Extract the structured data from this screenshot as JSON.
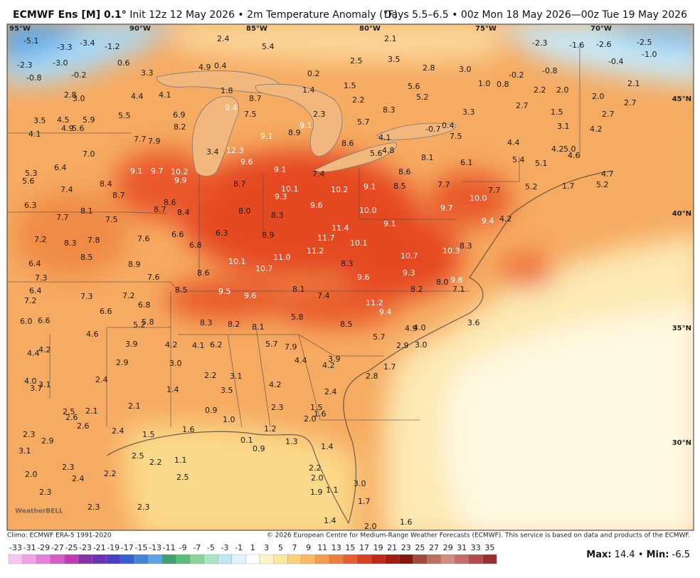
{
  "header": {
    "title_bold": "ECMWF Ens [M] 0.1°",
    "title_rest": "Init 12z 12 May 2026 • 2m Temperature Anomaly (°F)",
    "valid": "Days 5.5–6.5 • 00z Mon 18 May 2026—00z Tue 19 May 2026"
  },
  "map": {
    "lon_labels": [
      "95°W",
      "90°W",
      "85°W",
      "80°W",
      "75°W",
      "70°W"
    ],
    "lat_labels": [
      "45°N",
      "40°N",
      "35°N",
      "30°N"
    ],
    "logo": "WeatherBELL",
    "values": [
      "-5.1",
      "-3.3",
      "-3.4",
      "-1.2",
      "-2.3",
      "-3.0",
      "0.6",
      "-0.8",
      "-0.2",
      "2.4",
      "5.4",
      "2.1",
      "3.5",
      "2.5",
      "2.8",
      "3.0",
      "-2.3",
      "-1.6",
      "-2.6",
      "-2.5",
      "-1.0",
      "-0.4",
      "-0.8",
      "-0.2",
      "3.3",
      "4.9",
      "0.4",
      "0.2",
      "2.8",
      "3.0",
      "4.4",
      "4.1",
      "1.8",
      "1.4",
      "1.5",
      "2.2",
      "5.6",
      "5.2",
      "1.0",
      "0.8",
      "2.2",
      "2.0",
      "2.1",
      "2.0",
      "2.7",
      "2.7",
      "1.5",
      "5.5",
      "6.9",
      "8.2",
      "9.4",
      "8.7",
      "7.5",
      "2.3",
      "8.3",
      "5.7",
      "3.3",
      "3.1",
      "2.7",
      "4.2",
      "3.5",
      "4.5",
      "5.9",
      "4.1",
      "4.9",
      "5.6",
      "9.1",
      "9.1",
      "8.9",
      "-0.7",
      "0.4",
      "7.5",
      "4.1",
      "7.7",
      "7.9",
      "8.6",
      "4.4",
      "4.2",
      "5.0",
      "4.6",
      "3.4",
      "12.3",
      "9.6",
      "7.0",
      "5.6",
      "4.8",
      "8.1",
      "6.1",
      "5.4",
      "5.1",
      "6.4",
      "9.1",
      "9.7",
      "10.2",
      "9.9",
      "9.1",
      "7.4",
      "8.6",
      "4.7",
      "5.3",
      "5.6",
      "8.4",
      "7.4",
      "8.7",
      "10.1",
      "10.2",
      "9.1",
      "8.5",
      "7.7",
      "5.2",
      "1.7",
      "5.2",
      "7.7",
      "8.7",
      "10.0",
      "9.3",
      "6.3",
      "8.1",
      "8.6",
      "8.7",
      "8.4",
      "8.0",
      "9.6",
      "10.0",
      "9.7",
      "8.3",
      "7.7",
      "7.5",
      "9.1",
      "9.4",
      "4.2",
      "6.3",
      "6.6",
      "7.6",
      "7.2",
      "8.3",
      "7.8",
      "8.9",
      "11.4",
      "11.7",
      "10.1",
      "6.8",
      "10.3",
      "8.3",
      "11.2",
      "8.5",
      "11.0",
      "10.7",
      "10.1",
      "6.4",
      "8.9",
      "8.3",
      "10.7",
      "9.3",
      "8.6",
      "7.3",
      "7.6",
      "9.6",
      "8.0",
      "9.8",
      "6.4",
      "8.5",
      "9.5",
      "8.1",
      "8.2",
      "7.1",
      "7.3",
      "7.2",
      "9.6",
      "7.4",
      "7.2",
      "6.8",
      "11.2",
      "6.6",
      "9.4",
      "5.8",
      "6.0",
      "6.6",
      "5.2",
      "5.8",
      "8.3",
      "8.2",
      "8.1",
      "8.5",
      "3.6",
      "4.9",
      "4.0",
      "4.6",
      "5.7",
      "3.9",
      "4.2",
      "4.1",
      "6.2",
      "5.7",
      "7.9",
      "2.9",
      "3.0",
      "4.4",
      "4.2",
      "3.9",
      "3.0",
      "2.9",
      "4.4",
      "4.2",
      "1.7",
      "2.2",
      "3.1",
      "2.8",
      "4.0",
      "3.7",
      "3.1",
      "2.4",
      "4.2",
      "1.4",
      "3.5",
      "2.4",
      "2.1",
      "2.3",
      "1.5",
      "0.9",
      "2.5",
      "2.1",
      "1.6",
      "2.6",
      "2.0",
      "1.0",
      "2.6",
      "2.4",
      "1.6",
      "1.2",
      "2.3",
      "2.9",
      "1.5",
      "0.1",
      "0.9",
      "1.3",
      "1.4",
      "3.1",
      "2.5",
      "2.2",
      "1.1",
      "2.2",
      "2.0",
      "2.3",
      "2.4",
      "2.2",
      "2.5",
      "2.0",
      "3.0",
      "1.1",
      "1.9",
      "2.3",
      "1.7",
      "2.3",
      "2.3",
      "1.4",
      "2.0",
      "1.6"
    ]
  },
  "footer": {
    "climo": "Climo: ECMWF ERA-5 1991-2020",
    "copyright": "© 2026 European Centre for Medium-Range Weather Forecasts (ECMWF). This service is based on data and products of the ECMWF."
  },
  "colorbar": {
    "ticks": [
      -33,
      -31,
      -29,
      -27,
      -25,
      -23,
      -21,
      -19,
      -17,
      -15,
      -13,
      -11,
      -9,
      -7,
      -5,
      -3,
      -1,
      1,
      3,
      5,
      7,
      9,
      11,
      13,
      15,
      17,
      19,
      21,
      23,
      25,
      27,
      29,
      31,
      33,
      35
    ],
    "colors": [
      "#f7c6ef",
      "#f0a2e6",
      "#e67fd9",
      "#d75cc8",
      "#c23ab5",
      "#8b2fa8",
      "#6a32b5",
      "#4a3fc4",
      "#3660d0",
      "#3f86dc",
      "#5aa6e6",
      "#3fa070",
      "#5bbd7a",
      "#8ad39a",
      "#a9e3c9",
      "#bfe6f2",
      "#dff2fb",
      "#ffffff",
      "#fff4c2",
      "#fde79a",
      "#fbd27a",
      "#f8b960",
      "#f49c4c",
      "#ef7d3b",
      "#e85d2b",
      "#d9401f",
      "#c02a18",
      "#a01c14",
      "#86140f",
      "#a34c3c",
      "#be6e60",
      "#d38c80",
      "#c76b6b",
      "#b44a4a",
      "#9b2f2f"
    ]
  },
  "stats": {
    "max_label": "Max:",
    "max": 14.4,
    "sep": "•",
    "min_label": "Min:",
    "min": -6.5
  }
}
